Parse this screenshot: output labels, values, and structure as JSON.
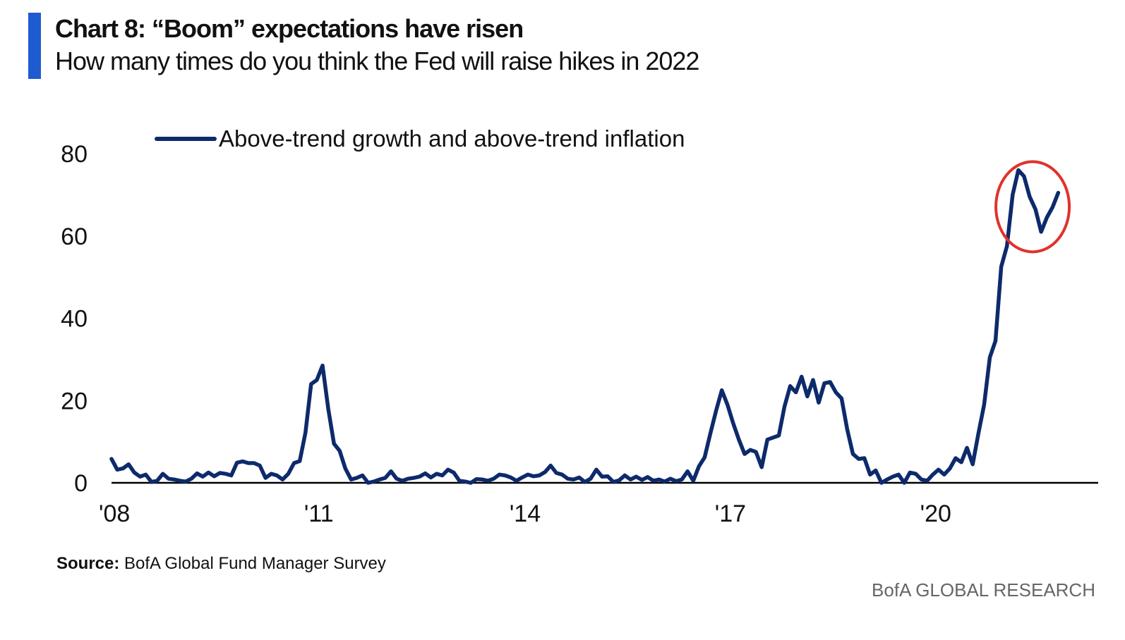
{
  "header": {
    "title": "Chart 8: “Boom” expectations have risen",
    "subtitle": "How many times do you think the Fed will raise hikes in 2022"
  },
  "footer": {
    "source_label": "Source:",
    "source_text": "BofA Global Fund Manager Survey",
    "brand": "BofA GLOBAL RESEARCH"
  },
  "colors": {
    "accent": "#1f5bd0",
    "series": "#0d2a6b",
    "highlight_circle": "#e0322b",
    "axis": "#000000"
  },
  "chart_data": {
    "type": "line",
    "title": "Chart 8: “Boom” expectations have risen",
    "xlabel": "",
    "ylabel": "",
    "ylim": [
      0,
      80
    ],
    "yticks": [
      "0",
      "20",
      "40",
      "60",
      "80"
    ],
    "xticks": [
      {
        "label": "'08",
        "x": "2008-01"
      },
      {
        "label": "'11",
        "x": "2011-01"
      },
      {
        "label": "'14",
        "x": "2014-01"
      },
      {
        "label": "'17",
        "x": "2017-01"
      },
      {
        "label": "'20",
        "x": "2020-01"
      }
    ],
    "xlim": [
      "2008-01",
      "2022-06"
    ],
    "grid": false,
    "legend_position": "top-left",
    "annotation": "red circle around 2021 peak",
    "series": [
      {
        "name": "Above-trend growth and above-trend inflation",
        "points": [
          [
            "2008-01",
            5.8
          ],
          [
            "2008-02",
            3.2
          ],
          [
            "2008-03",
            3.5
          ],
          [
            "2008-04",
            4.5
          ],
          [
            "2008-05",
            2.5
          ],
          [
            "2008-06",
            1.5
          ],
          [
            "2008-07",
            2.0
          ],
          [
            "2008-08",
            0.2
          ],
          [
            "2008-09",
            0.5
          ],
          [
            "2008-10",
            2.2
          ],
          [
            "2008-11",
            1.0
          ],
          [
            "2008-12",
            0.8
          ],
          [
            "2009-01",
            0.5
          ],
          [
            "2009-02",
            0.3
          ],
          [
            "2009-03",
            1.0
          ],
          [
            "2009-04",
            2.3
          ],
          [
            "2009-05",
            1.5
          ],
          [
            "2009-06",
            2.5
          ],
          [
            "2009-07",
            1.6
          ],
          [
            "2009-08",
            2.4
          ],
          [
            "2009-09",
            2.2
          ],
          [
            "2009-10",
            1.8
          ],
          [
            "2009-11",
            4.9
          ],
          [
            "2009-12",
            5.2
          ],
          [
            "2010-01",
            4.8
          ],
          [
            "2010-02",
            4.8
          ],
          [
            "2010-03",
            4.2
          ],
          [
            "2010-04",
            1.2
          ],
          [
            "2010-05",
            2.2
          ],
          [
            "2010-06",
            1.8
          ],
          [
            "2010-07",
            0.8
          ],
          [
            "2010-08",
            2.2
          ],
          [
            "2010-09",
            4.8
          ],
          [
            "2010-10",
            5.3
          ],
          [
            "2010-11",
            12.2
          ],
          [
            "2010-12",
            24.0
          ],
          [
            "2011-01",
            25.0
          ],
          [
            "2011-02",
            28.5
          ],
          [
            "2011-03",
            18.0
          ],
          [
            "2011-04",
            9.5
          ],
          [
            "2011-05",
            7.8
          ],
          [
            "2011-06",
            3.5
          ],
          [
            "2011-07",
            0.8
          ],
          [
            "2011-08",
            1.2
          ],
          [
            "2011-09",
            1.8
          ],
          [
            "2011-10",
            0.0
          ],
          [
            "2011-11",
            0.3
          ],
          [
            "2011-12",
            0.8
          ],
          [
            "2012-01",
            1.2
          ],
          [
            "2012-02",
            2.8
          ],
          [
            "2012-03",
            1.0
          ],
          [
            "2012-04",
            0.5
          ],
          [
            "2012-05",
            1.0
          ],
          [
            "2012-06",
            1.2
          ],
          [
            "2012-07",
            1.5
          ],
          [
            "2012-08",
            2.3
          ],
          [
            "2012-09",
            1.3
          ],
          [
            "2012-10",
            2.2
          ],
          [
            "2012-11",
            1.8
          ],
          [
            "2012-12",
            3.2
          ],
          [
            "2013-01",
            2.5
          ],
          [
            "2013-02",
            0.5
          ],
          [
            "2013-03",
            0.3
          ],
          [
            "2013-04",
            0.0
          ],
          [
            "2013-05",
            0.9
          ],
          [
            "2013-06",
            0.8
          ],
          [
            "2013-07",
            0.5
          ],
          [
            "2013-08",
            1.0
          ],
          [
            "2013-09",
            2.0
          ],
          [
            "2013-10",
            1.8
          ],
          [
            "2013-11",
            1.3
          ],
          [
            "2013-12",
            0.5
          ],
          [
            "2014-01",
            1.3
          ],
          [
            "2014-02",
            2.0
          ],
          [
            "2014-03",
            1.6
          ],
          [
            "2014-04",
            1.8
          ],
          [
            "2014-05",
            2.6
          ],
          [
            "2014-06",
            4.2
          ],
          [
            "2014-07",
            2.4
          ],
          [
            "2014-08",
            2.0
          ],
          [
            "2014-09",
            1.0
          ],
          [
            "2014-10",
            0.8
          ],
          [
            "2014-11",
            1.3
          ],
          [
            "2014-12",
            0.2
          ],
          [
            "2015-01",
            1.0
          ],
          [
            "2015-02",
            3.2
          ],
          [
            "2015-03",
            1.5
          ],
          [
            "2015-04",
            1.6
          ],
          [
            "2015-05",
            0.2
          ],
          [
            "2015-06",
            0.6
          ],
          [
            "2015-07",
            1.8
          ],
          [
            "2015-08",
            0.8
          ],
          [
            "2015-09",
            1.5
          ],
          [
            "2015-10",
            0.7
          ],
          [
            "2015-11",
            1.4
          ],
          [
            "2015-12",
            0.5
          ],
          [
            "2016-01",
            0.8
          ],
          [
            "2016-02",
            0.3
          ],
          [
            "2016-03",
            1.0
          ],
          [
            "2016-04",
            0.4
          ],
          [
            "2016-05",
            0.8
          ],
          [
            "2016-06",
            2.8
          ],
          [
            "2016-07",
            0.5
          ],
          [
            "2016-08",
            4.0
          ],
          [
            "2016-09",
            6.2
          ],
          [
            "2016-10",
            12.0
          ],
          [
            "2016-11",
            17.5
          ],
          [
            "2016-12",
            22.5
          ],
          [
            "2017-01",
            19.0
          ],
          [
            "2017-02",
            14.5
          ],
          [
            "2017-03",
            10.5
          ],
          [
            "2017-04",
            7.0
          ],
          [
            "2017-05",
            8.0
          ],
          [
            "2017-06",
            7.5
          ],
          [
            "2017-07",
            3.8
          ],
          [
            "2017-08",
            10.5
          ],
          [
            "2017-09",
            11.0
          ],
          [
            "2017-10",
            11.5
          ],
          [
            "2017-11",
            18.5
          ],
          [
            "2017-12",
            23.5
          ],
          [
            "2018-01",
            22.0
          ],
          [
            "2018-02",
            25.8
          ],
          [
            "2018-03",
            21.0
          ],
          [
            "2018-04",
            25.0
          ],
          [
            "2018-05",
            19.5
          ],
          [
            "2018-06",
            24.2
          ],
          [
            "2018-07",
            24.5
          ],
          [
            "2018-08",
            22.0
          ],
          [
            "2018-09",
            20.5
          ],
          [
            "2018-10",
            13.0
          ],
          [
            "2018-11",
            7.0
          ],
          [
            "2018-12",
            5.8
          ],
          [
            "2019-01",
            6.0
          ],
          [
            "2019-02",
            2.0
          ],
          [
            "2019-03",
            3.0
          ],
          [
            "2019-04",
            0.0
          ],
          [
            "2019-05",
            0.8
          ],
          [
            "2019-06",
            1.5
          ],
          [
            "2019-07",
            2.0
          ],
          [
            "2019-08",
            0.0
          ],
          [
            "2019-09",
            2.5
          ],
          [
            "2019-10",
            2.2
          ],
          [
            "2019-11",
            0.8
          ],
          [
            "2019-12",
            0.5
          ],
          [
            "2020-01",
            2.0
          ],
          [
            "2020-02",
            3.2
          ],
          [
            "2020-03",
            2.0
          ],
          [
            "2020-04",
            3.5
          ],
          [
            "2020-05",
            6.0
          ],
          [
            "2020-06",
            5.0
          ],
          [
            "2020-07",
            8.5
          ],
          [
            "2020-08",
            4.5
          ],
          [
            "2020-09",
            12.0
          ],
          [
            "2020-10",
            19.0
          ],
          [
            "2020-11",
            30.5
          ],
          [
            "2020-12",
            34.5
          ],
          [
            "2021-01",
            52.5
          ],
          [
            "2021-02",
            57.5
          ],
          [
            "2021-03",
            70.0
          ],
          [
            "2021-04",
            76.0
          ],
          [
            "2021-05",
            74.5
          ],
          [
            "2021-06",
            69.5
          ],
          [
            "2021-07",
            66.5
          ],
          [
            "2021-08",
            61.0
          ],
          [
            "2021-09",
            64.5
          ],
          [
            "2021-10",
            67.0
          ],
          [
            "2021-11",
            70.5
          ]
        ]
      }
    ]
  }
}
